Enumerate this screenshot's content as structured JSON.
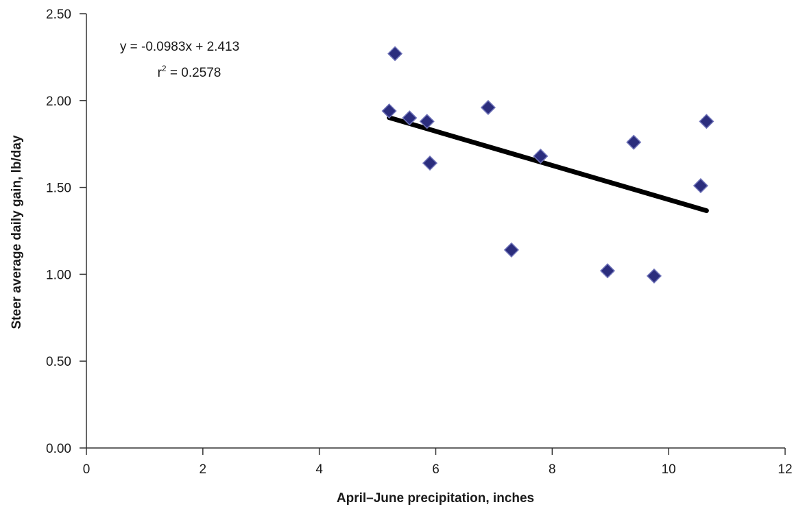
{
  "chart_data": {
    "type": "scatter",
    "title": "",
    "xlabel": "April–June precipitation, inches",
    "ylabel": "Steer average daily gain, lb/day",
    "xlim": [
      0,
      12
    ],
    "ylim": [
      0,
      2.5
    ],
    "x_ticks": [
      0,
      2,
      4,
      6,
      8,
      10,
      12
    ],
    "y_ticks": [
      0,
      0.5,
      1.0,
      1.5,
      2.0,
      2.5
    ],
    "x_tick_labels": [
      "0",
      "2",
      "4",
      "6",
      "8",
      "10",
      "12"
    ],
    "y_tick_labels": [
      "0.00",
      "0.50",
      "1.00",
      "1.50",
      "2.00",
      "2.50"
    ],
    "grid": false,
    "legend": "none",
    "series": [
      {
        "marker": "diamond",
        "color": "#2b2d7d",
        "points": [
          {
            "x": 5.2,
            "y": 1.94
          },
          {
            "x": 5.3,
            "y": 2.27
          },
          {
            "x": 5.55,
            "y": 1.9
          },
          {
            "x": 5.85,
            "y": 1.88
          },
          {
            "x": 5.9,
            "y": 1.64
          },
          {
            "x": 6.9,
            "y": 1.96
          },
          {
            "x": 7.3,
            "y": 1.14
          },
          {
            "x": 7.8,
            "y": 1.68
          },
          {
            "x": 8.95,
            "y": 1.02
          },
          {
            "x": 9.4,
            "y": 1.76
          },
          {
            "x": 9.75,
            "y": 0.99
          },
          {
            "x": 10.55,
            "y": 1.51
          },
          {
            "x": 10.65,
            "y": 1.88
          }
        ]
      }
    ],
    "trendline": {
      "slope": -0.0983,
      "intercept": 2.413,
      "x_range": [
        5.2,
        10.65
      ],
      "color": "#000000"
    },
    "annotations": {
      "equation": "y = -0.0983x + 2.413",
      "r_squared_prefix": "r",
      "r_squared_exponent": "2",
      "r_squared_value": " = 0.2578"
    }
  }
}
